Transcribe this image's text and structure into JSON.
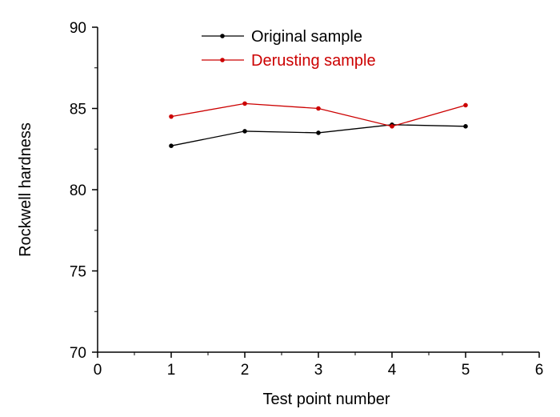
{
  "chart_data": {
    "type": "line",
    "title": "",
    "xlabel": "Test point number",
    "ylabel": "Rockwell hardness",
    "xlim": [
      0,
      6
    ],
    "ylim": [
      70,
      90
    ],
    "xticks": [
      0,
      1,
      2,
      3,
      4,
      5,
      6
    ],
    "yticks": [
      70,
      75,
      80,
      85,
      90
    ],
    "grid": false,
    "legend_position": "top-center",
    "x": [
      1,
      2,
      3,
      4,
      5
    ],
    "series": [
      {
        "name": "Original sample",
        "color": "#000000",
        "values": [
          82.7,
          83.6,
          83.5,
          84.0,
          83.9
        ]
      },
      {
        "name": "Derusting sample",
        "color": "#cc0000",
        "values": [
          84.5,
          85.3,
          85.0,
          83.9,
          85.2
        ]
      }
    ]
  }
}
